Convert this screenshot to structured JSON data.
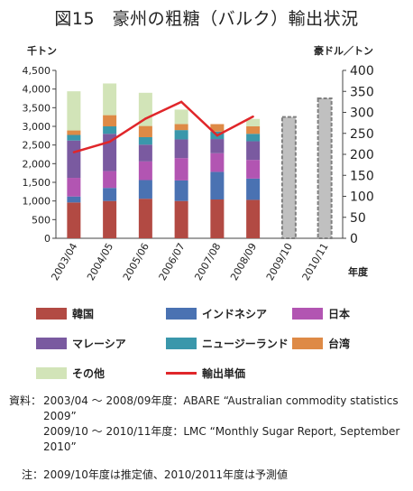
{
  "title": "図15　豪州の粗糖（バルク）輸出状況",
  "chart_data": {
    "type": "bar",
    "stacked": true,
    "title": "図15　豪州の粗糖（バルク）輸出状況",
    "y_left_unit": "千トン",
    "y_right_unit": "豪ドル／トン",
    "x_unit": "年度",
    "ylim_left": [
      0,
      4500
    ],
    "ylim_right": [
      0,
      400
    ],
    "y_left_ticks": [
      "0",
      "500",
      "1,000",
      "1,500",
      "2,000",
      "2,500",
      "3,000",
      "3,500",
      "4,000",
      "4,500"
    ],
    "y_right_ticks": [
      "0",
      "50",
      "100",
      "150",
      "200",
      "250",
      "300",
      "350",
      "400"
    ],
    "categories": [
      "2003/04",
      "2004/05",
      "2005/06",
      "2006/07",
      "2007/08",
      "2008/09",
      "2009/10",
      "2010/11"
    ],
    "series": [
      {
        "name": "韓国",
        "color": "#b24a43",
        "values": [
          960,
          1000,
          1060,
          1000,
          1040,
          1030,
          null,
          null
        ]
      },
      {
        "name": "インドネシア",
        "color": "#4a72b2",
        "values": [
          160,
          350,
          500,
          550,
          740,
          570,
          null,
          null
        ]
      },
      {
        "name": "日本",
        "color": "#b255b2",
        "values": [
          500,
          450,
          500,
          600,
          500,
          500,
          null,
          null
        ]
      },
      {
        "name": "マレーシア",
        "color": "#7a5aa0",
        "values": [
          1000,
          1000,
          450,
          500,
          380,
          500,
          null,
          null
        ]
      },
      {
        "name": "ニュージーランド",
        "color": "#3a97ab",
        "values": [
          150,
          200,
          200,
          250,
          200,
          200,
          null,
          null
        ]
      },
      {
        "name": "台湾",
        "color": "#de8a46",
        "values": [
          120,
          300,
          300,
          160,
          200,
          200,
          null,
          null
        ]
      },
      {
        "name": "その他",
        "color": "#d2e4b8",
        "values": [
          1050,
          850,
          890,
          390,
          0,
          200,
          null,
          null
        ]
      }
    ],
    "totals_forecast": {
      "color": "#c0c0c0",
      "values": [
        null,
        null,
        null,
        null,
        null,
        null,
        3250,
        3750
      ]
    },
    "line": {
      "name": "輸出単価",
      "color": "#e0262a",
      "axis": "right",
      "values": [
        205,
        230,
        285,
        325,
        245,
        290,
        null,
        null
      ]
    }
  },
  "notes": [
    {
      "label": "資料：",
      "text": "2003/04 〜 2008/09年度：ABARE “Australian commodity statistics 2009”"
    },
    {
      "label": "",
      "text": "2009/10 〜 2010/11年度：LMC “Monthly Sugar Report, September 2010”"
    },
    {
      "label": "注：",
      "text": "2009/10年度は推定値、2010/2011年度は予測値"
    }
  ]
}
